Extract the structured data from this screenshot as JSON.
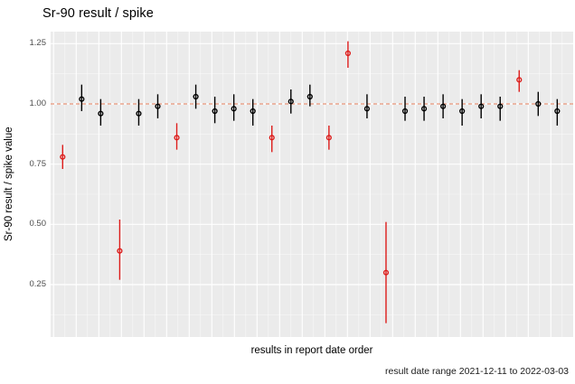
{
  "title": "Sr-90 result / spike",
  "colors": {
    "red": "#dd1c1a",
    "black": "#000000",
    "ref_line": "#e89578",
    "panel_bg": "#ebebeb",
    "grid_major": "#ffffff",
    "grid_minor": "rgba(255,255,255,0.65)",
    "tick_label": "#4d4d4d"
  },
  "chart_data": {
    "type": "scatter",
    "title": "Sr-90 result / spike",
    "xlabel": "results in report date order",
    "ylabel": "Sr-90 result / spike value",
    "caption": "result date range 2021-12-11 to 2022-03-03",
    "x_axis": {
      "tick_labels": [],
      "note": "no x tick labels shown; points plotted in report date order, indices 1-27"
    },
    "ylim": [
      0.03,
      1.3
    ],
    "yticks": [
      {
        "value": 1.25,
        "label": "1.25"
      },
      {
        "value": 1.0,
        "label": "1.00"
      },
      {
        "value": 0.75,
        "label": "0.75"
      },
      {
        "value": 0.5,
        "label": "0.50"
      },
      {
        "value": 0.25,
        "label": "0.25"
      }
    ],
    "yminor": [
      1.125,
      0.875,
      0.625,
      0.375,
      0.125
    ],
    "reference_line": {
      "y": 1.0,
      "style": "dashed"
    },
    "grid": true,
    "legend": "none",
    "points": [
      {
        "i": 1,
        "value": 0.78,
        "lo": 0.73,
        "hi": 0.83,
        "flag": "red"
      },
      {
        "i": 2,
        "value": 1.02,
        "lo": 0.97,
        "hi": 1.08,
        "flag": "black"
      },
      {
        "i": 3,
        "value": 0.96,
        "lo": 0.91,
        "hi": 1.02,
        "flag": "black"
      },
      {
        "i": 4,
        "value": 0.39,
        "lo": 0.27,
        "hi": 0.52,
        "flag": "red"
      },
      {
        "i": 5,
        "value": 0.96,
        "lo": 0.91,
        "hi": 1.02,
        "flag": "black"
      },
      {
        "i": 6,
        "value": 0.99,
        "lo": 0.94,
        "hi": 1.04,
        "flag": "black"
      },
      {
        "i": 7,
        "value": 0.86,
        "lo": 0.81,
        "hi": 0.92,
        "flag": "red"
      },
      {
        "i": 8,
        "value": 1.03,
        "lo": 0.98,
        "hi": 1.08,
        "flag": "black"
      },
      {
        "i": 9,
        "value": 0.97,
        "lo": 0.92,
        "hi": 1.03,
        "flag": "black"
      },
      {
        "i": 10,
        "value": 0.98,
        "lo": 0.93,
        "hi": 1.04,
        "flag": "black"
      },
      {
        "i": 11,
        "value": 0.97,
        "lo": 0.91,
        "hi": 1.02,
        "flag": "black"
      },
      {
        "i": 12,
        "value": 0.86,
        "lo": 0.8,
        "hi": 0.91,
        "flag": "red"
      },
      {
        "i": 13,
        "value": 1.01,
        "lo": 0.96,
        "hi": 1.06,
        "flag": "black"
      },
      {
        "i": 14,
        "value": 1.03,
        "lo": 0.99,
        "hi": 1.08,
        "flag": "black"
      },
      {
        "i": 15,
        "value": 0.86,
        "lo": 0.81,
        "hi": 0.91,
        "flag": "red"
      },
      {
        "i": 16,
        "value": 1.21,
        "lo": 1.15,
        "hi": 1.26,
        "flag": "red"
      },
      {
        "i": 17,
        "value": 0.98,
        "lo": 0.94,
        "hi": 1.04,
        "flag": "black"
      },
      {
        "i": 18,
        "value": 0.3,
        "lo": 0.09,
        "hi": 0.51,
        "flag": "red"
      },
      {
        "i": 19,
        "value": 0.97,
        "lo": 0.93,
        "hi": 1.03,
        "flag": "black"
      },
      {
        "i": 20,
        "value": 0.98,
        "lo": 0.93,
        "hi": 1.03,
        "flag": "black"
      },
      {
        "i": 21,
        "value": 0.99,
        "lo": 0.94,
        "hi": 1.04,
        "flag": "black"
      },
      {
        "i": 22,
        "value": 0.97,
        "lo": 0.91,
        "hi": 1.02,
        "flag": "black"
      },
      {
        "i": 23,
        "value": 0.99,
        "lo": 0.94,
        "hi": 1.04,
        "flag": "black"
      },
      {
        "i": 24,
        "value": 0.99,
        "lo": 0.93,
        "hi": 1.03,
        "flag": "black"
      },
      {
        "i": 25,
        "value": 1.1,
        "lo": 1.05,
        "hi": 1.14,
        "flag": "red"
      },
      {
        "i": 26,
        "value": 1.0,
        "lo": 0.95,
        "hi": 1.05,
        "flag": "black"
      },
      {
        "i": 27,
        "value": 0.97,
        "lo": 0.91,
        "hi": 1.02,
        "flag": "black"
      }
    ]
  }
}
